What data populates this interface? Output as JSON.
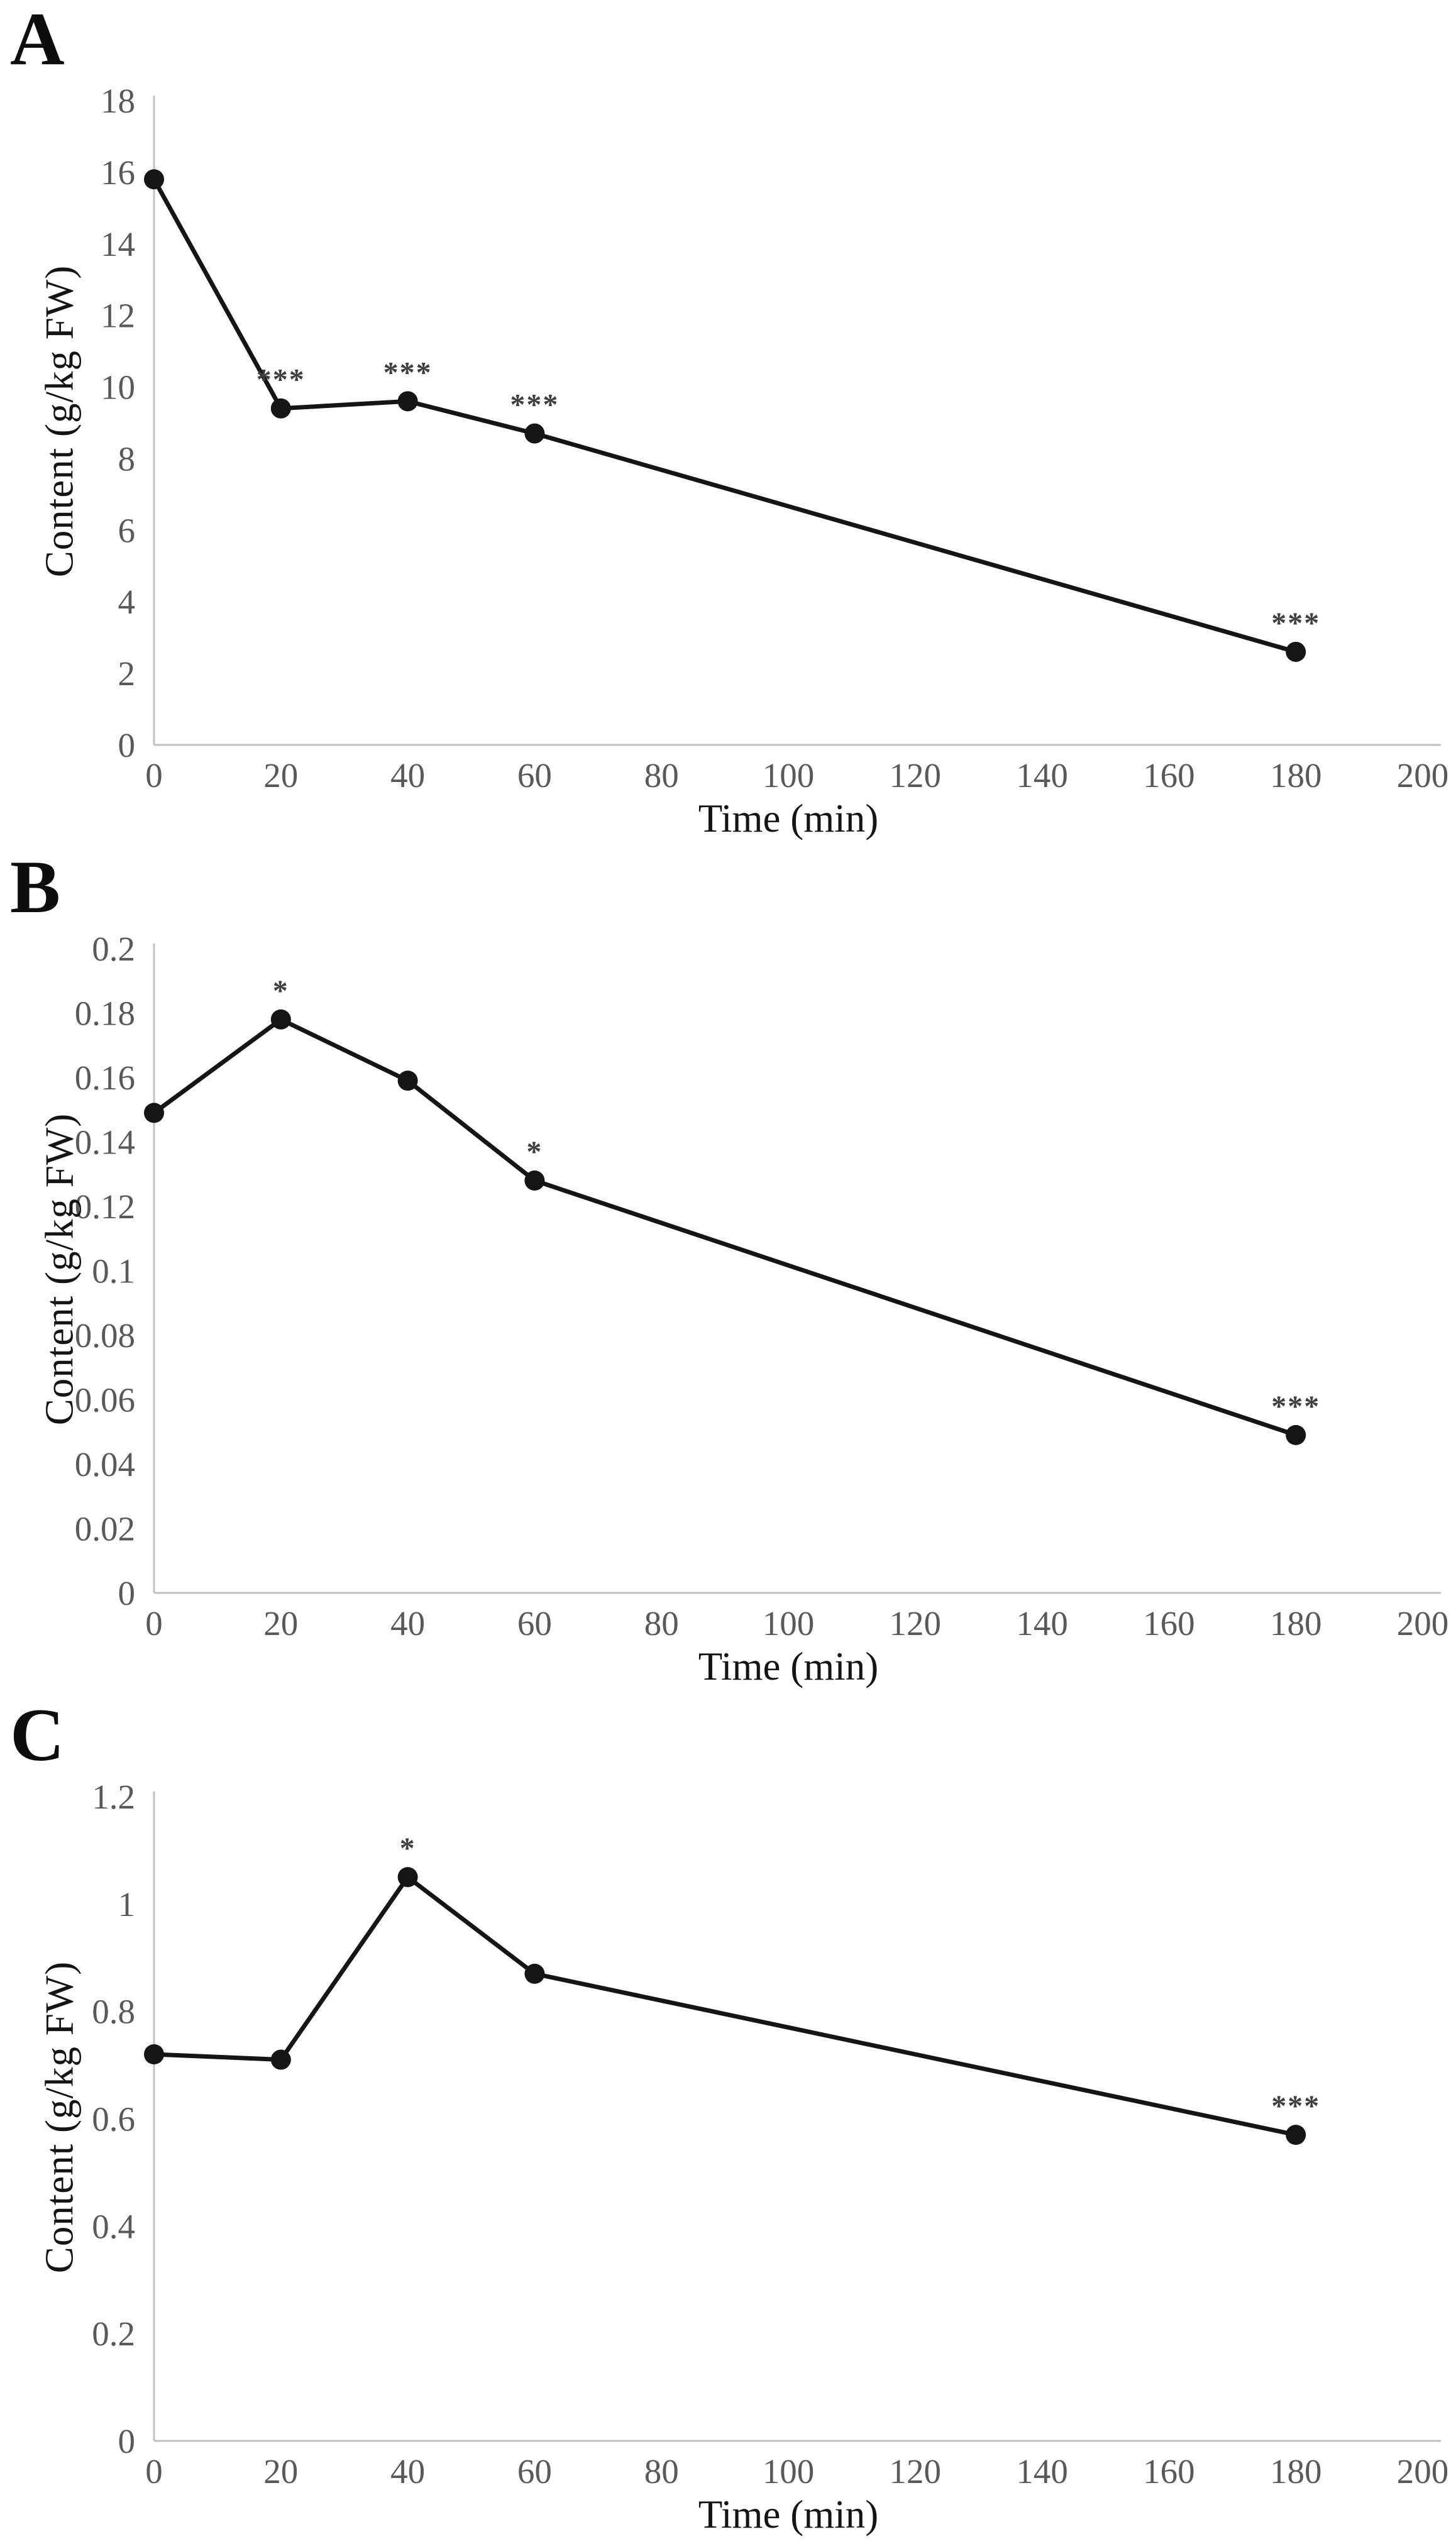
{
  "figure": {
    "background_color": "#ffffff"
  },
  "style": {
    "line_color": "#151515",
    "marker_color": "#151515",
    "axis_color": "#bfbfbf",
    "tick_label_color": "#595959",
    "significance_color": "#3f3f3f"
  },
  "chart_data": [
    {
      "type": "line",
      "panel_label": "A",
      "xlabel": "Time (min)",
      "ylabel": "Content (g/kg FW)",
      "x": [
        0,
        20,
        40,
        60,
        180
      ],
      "values": [
        15.8,
        9.4,
        9.6,
        8.7,
        2.6
      ],
      "significance": [
        "",
        "***",
        "***",
        "***",
        "***"
      ],
      "xlim": [
        0,
        200
      ],
      "ylim": [
        0,
        18
      ],
      "xticks": [
        0,
        20,
        40,
        60,
        80,
        100,
        120,
        140,
        160,
        180,
        200
      ],
      "xtick_labels": [
        "0",
        "20",
        "40",
        "60",
        "80",
        "100",
        "120",
        "140",
        "160",
        "180",
        "200"
      ],
      "yticks": [
        0,
        2,
        4,
        6,
        8,
        10,
        12,
        14,
        16,
        18
      ],
      "ytick_labels": [
        "0",
        "2",
        "4",
        "6",
        "8",
        "10",
        "12",
        "14",
        "16",
        "18"
      ],
      "grid": false,
      "legend": "none",
      "marker": "circle"
    },
    {
      "type": "line",
      "panel_label": "B",
      "xlabel": "Time (min)",
      "ylabel": "Content (g/kg FW)",
      "x": [
        0,
        20,
        40,
        60,
        180
      ],
      "values": [
        0.149,
        0.178,
        0.159,
        0.128,
        0.049
      ],
      "significance": [
        "",
        "*",
        "",
        "*",
        "***"
      ],
      "xlim": [
        0,
        200
      ],
      "ylim": [
        0,
        0.2
      ],
      "xticks": [
        0,
        20,
        40,
        60,
        80,
        100,
        120,
        140,
        160,
        180,
        200
      ],
      "xtick_labels": [
        "0",
        "20",
        "40",
        "60",
        "80",
        "100",
        "120",
        "140",
        "160",
        "180",
        "200"
      ],
      "yticks": [
        0,
        0.02,
        0.04,
        0.06,
        0.08,
        0.1,
        0.12,
        0.14,
        0.16,
        0.18,
        0.2
      ],
      "ytick_labels": [
        "0",
        "0.02",
        "0.04",
        "0.06",
        "0.08",
        "0.1",
        "0.12",
        "0.14",
        "0.16",
        "0.18",
        "0.2"
      ],
      "grid": false,
      "legend": "none",
      "marker": "circle"
    },
    {
      "type": "line",
      "panel_label": "C",
      "xlabel": "Time (min)",
      "ylabel": "Content (g/kg FW)",
      "x": [
        0,
        20,
        40,
        60,
        180
      ],
      "values": [
        0.72,
        0.71,
        1.05,
        0.87,
        0.57
      ],
      "significance": [
        "",
        "",
        "*",
        "",
        "***"
      ],
      "xlim": [
        0,
        200
      ],
      "ylim": [
        0,
        1.2
      ],
      "xticks": [
        0,
        20,
        40,
        60,
        80,
        100,
        120,
        140,
        160,
        180,
        200
      ],
      "xtick_labels": [
        "0",
        "20",
        "40",
        "60",
        "80",
        "100",
        "120",
        "140",
        "160",
        "180",
        "200"
      ],
      "yticks": [
        0,
        0.2,
        0.4,
        0.6,
        0.8,
        1,
        1.2
      ],
      "ytick_labels": [
        "0",
        "0.2",
        "0.4",
        "0.6",
        "0.8",
        "1",
        "1.2"
      ],
      "grid": false,
      "legend": "none",
      "marker": "circle"
    }
  ]
}
